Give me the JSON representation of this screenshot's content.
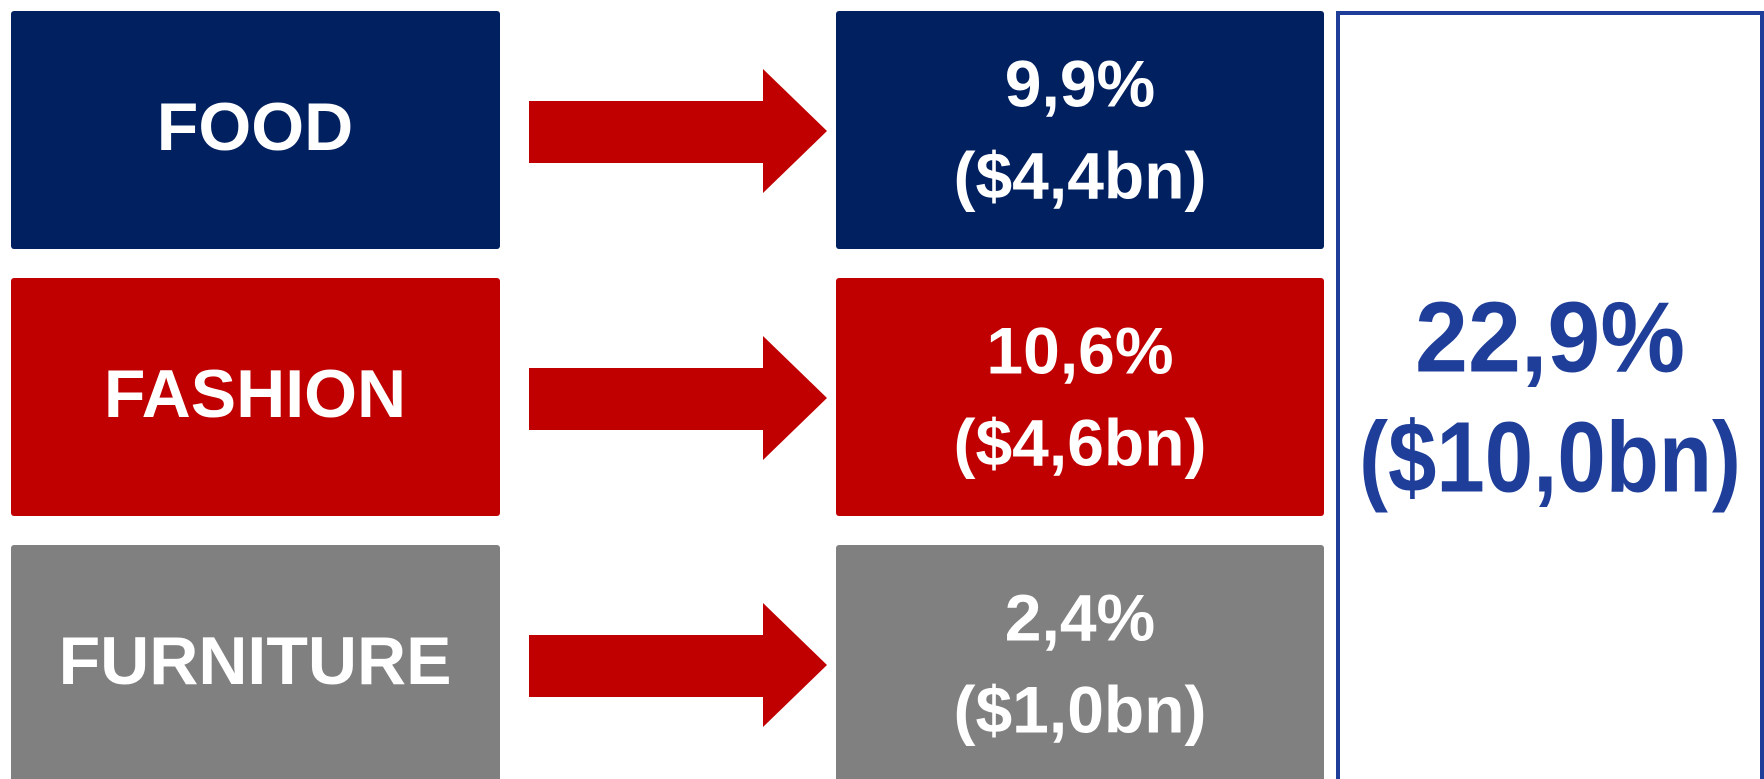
{
  "rows": [
    {
      "label": "FOOD",
      "percent": "9,9%",
      "amount": "($4,4bn)",
      "color": "#002060"
    },
    {
      "label": "FASHION",
      "percent": "10,6%",
      "amount": "($4,6bn)",
      "color": "#C00000"
    },
    {
      "label": "FURNITURE",
      "percent": "2,4%",
      "amount": "($1,0bn)",
      "color": "#808080"
    }
  ],
  "total": {
    "percent": "22,9%",
    "amount": "($10,0bn)"
  }
}
